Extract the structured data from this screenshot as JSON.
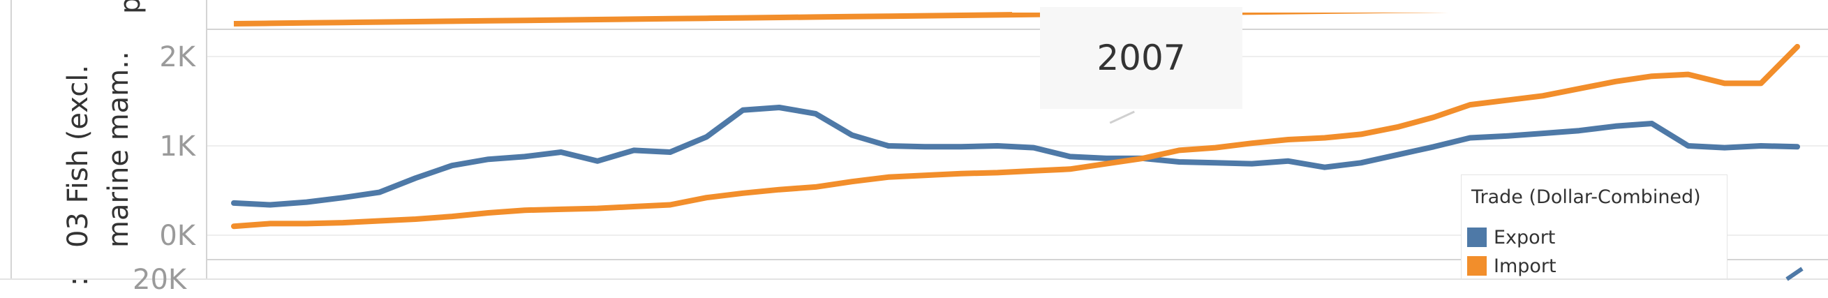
{
  "tooltip": {
    "text": "2007"
  },
  "legend": {
    "title": "Trade (Dollar-Combined)",
    "items": [
      {
        "label": "Export",
        "color": "#4e79a7"
      },
      {
        "label": "Import",
        "color": "#f28e2b"
      }
    ]
  },
  "rows": {
    "main_label_line1": "03 Fish (excl.",
    "main_label_line2": "marine mam..",
    "side_fragment": ":",
    "top_fragment": "p"
  },
  "chart_data": {
    "type": "line",
    "title": "",
    "xlabel": "",
    "ylabel": "03 Fish (excl. marine mam..",
    "x_index": [
      1,
      2,
      3,
      4,
      5,
      6,
      7,
      8,
      9,
      10,
      11,
      12,
      13,
      14,
      15,
      16,
      17,
      18,
      19,
      20,
      21,
      22,
      23,
      24,
      25,
      26,
      27,
      28,
      29,
      30,
      31,
      32,
      33,
      34,
      35,
      36,
      37,
      38,
      39,
      40,
      41,
      42,
      43,
      44
    ],
    "ylim": [
      -300,
      2700
    ],
    "y_ticks": [
      {
        "value": 0,
        "label": "0K"
      },
      {
        "value": 1000,
        "label": "1K"
      },
      {
        "value": 2000,
        "label": "2K"
      }
    ],
    "bottom_fragment_tick": "20K",
    "highlight": {
      "label": "2007",
      "x_index": 25,
      "y": 1140
    },
    "grid": true,
    "legend_position": "bottom-right",
    "series": [
      {
        "name": "Export",
        "color": "#4e79a7",
        "values": [
          360,
          340,
          370,
          420,
          480,
          640,
          780,
          850,
          880,
          930,
          830,
          950,
          930,
          1100,
          1400,
          1430,
          1360,
          1120,
          1000,
          990,
          990,
          1000,
          980,
          880,
          860,
          860,
          820,
          810,
          800,
          830,
          760,
          810,
          900,
          990,
          1090,
          1110,
          1140,
          1170,
          1220,
          1250,
          1000,
          980,
          1000,
          990
        ]
      },
      {
        "name": "Import",
        "color": "#f28e2b",
        "values": [
          100,
          130,
          130,
          140,
          160,
          180,
          210,
          250,
          280,
          290,
          300,
          320,
          340,
          420,
          470,
          510,
          540,
          600,
          650,
          670,
          690,
          700,
          720,
          740,
          800,
          860,
          950,
          980,
          1030,
          1070,
          1090,
          1130,
          1210,
          1320,
          1460,
          1510,
          1560,
          1640,
          1720,
          1780,
          1800,
          1700,
          1700,
          2110
        ]
      },
      {
        "name": "Top row (clipped)",
        "color": "#f28e2b",
        "values": [
          null,
          null,
          null,
          null,
          null,
          null,
          null,
          null,
          null,
          null,
          null,
          null,
          null,
          null,
          null,
          null,
          null,
          null,
          null,
          null,
          null,
          null,
          null,
          null,
          null,
          null,
          null,
          null,
          null,
          null,
          null,
          null,
          null,
          null,
          null,
          null,
          null,
          null,
          null,
          null,
          null,
          null,
          null,
          null
        ]
      }
    ]
  },
  "top_row_series": {
    "name": "Import",
    "color": "#f28e2b",
    "values": [
      0,
      10,
      20,
      30,
      40,
      50,
      60,
      70,
      80,
      90,
      100,
      110,
      120,
      130,
      140,
      150,
      160,
      170,
      180,
      190,
      200,
      210,
      220,
      230,
      240,
      250,
      260,
      270,
      280,
      290,
      300,
      310,
      320,
      330,
      340,
      350,
      360,
      370,
      380,
      390,
      400,
      410,
      420,
      430
    ]
  }
}
